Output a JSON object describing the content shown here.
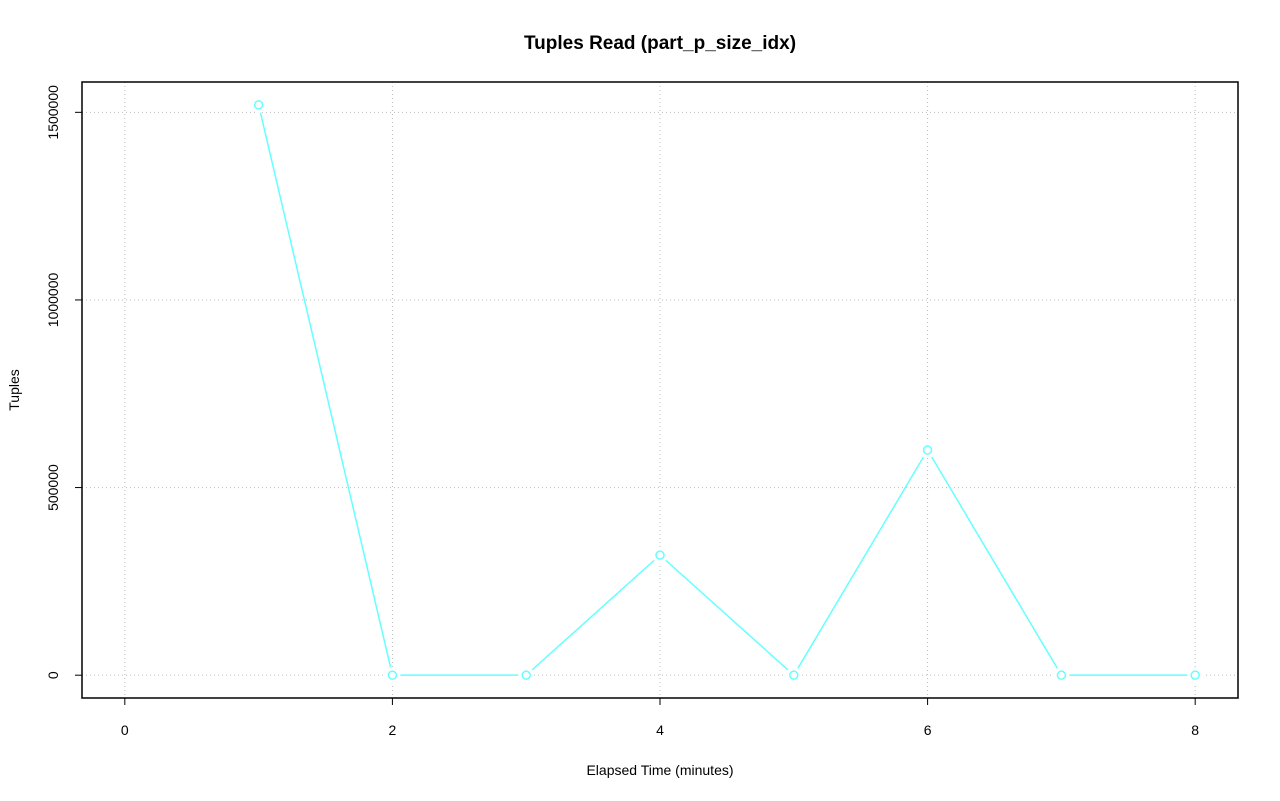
{
  "chart_data": {
    "type": "line",
    "title": "Tuples Read (part_p_size_idx)",
    "x_label": "Elapsed Time (minutes)",
    "y_label": "Tuples",
    "x": [
      1,
      2,
      3,
      4,
      5,
      6,
      7,
      8
    ],
    "series": [
      {
        "name": "part_p_size_idx",
        "color": "#66ffff",
        "values": [
          1520000,
          0,
          0,
          320000,
          0,
          600000,
          0,
          0
        ]
      }
    ],
    "xlim": [
      -0.32,
      8.32
    ],
    "xticks": [
      0,
      2,
      4,
      6,
      8
    ],
    "ylim": [
      -60800,
      1580800
    ],
    "yticks": [
      0,
      500000,
      1000000,
      1500000
    ],
    "grid": true
  }
}
